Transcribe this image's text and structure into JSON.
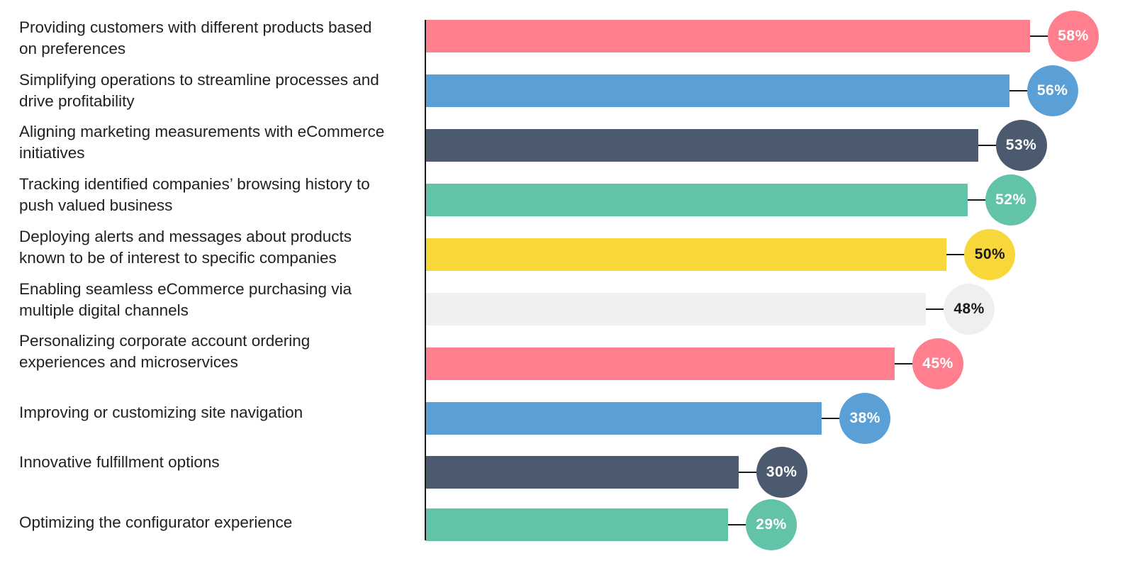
{
  "chart_data": {
    "type": "bar",
    "orientation": "horizontal",
    "title": "",
    "xlabel": "",
    "ylabel": "",
    "unit": "%",
    "xlim": [
      0,
      58
    ],
    "grid": false,
    "legend": "none",
    "categories": [
      "Providing customers with different products based\non preferences",
      "Simplifying operations to streamline processes and\ndrive profitability",
      "Aligning marketing measurements with eCommerce\ninitiatives",
      "Tracking identified companies’ browsing history to\npush valued business",
      "Deploying alerts and messages about products\nknown to be of interest to specific companies",
      "Enabling seamless eCommerce purchasing via\nmultiple digital channels",
      "Personalizing corporate account ordering\nexperiences and microservices",
      "Improving or customizing site navigation",
      "Innovative fulfillment options",
      "Optimizing the configurator experience"
    ],
    "values": [
      58,
      56,
      53,
      52,
      50,
      48,
      45,
      38,
      30,
      29
    ],
    "data_labels": [
      "58%",
      "56%",
      "53%",
      "52%",
      "50%",
      "48%",
      "45%",
      "38%",
      "30%",
      "29%"
    ],
    "colors": [
      "#ff7f8e",
      "#5a9fd5",
      "#4c5a70",
      "#63c3a8",
      "#f8d73a",
      "#efefef",
      "#ff7f8e",
      "#5a9fd5",
      "#4c5a70",
      "#63c3a8"
    ],
    "label_colors": [
      "#ffffff",
      "#ffffff",
      "#ffffff",
      "#ffffff",
      "#1a1a1a",
      "#1a1a1a",
      "#ffffff",
      "#ffffff",
      "#ffffff",
      "#ffffff"
    ]
  }
}
